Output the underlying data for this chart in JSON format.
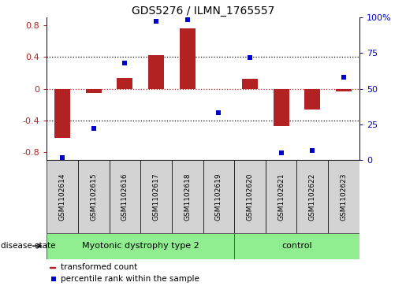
{
  "title": "GDS5276 / ILMN_1765557",
  "samples": [
    "GSM1102614",
    "GSM1102615",
    "GSM1102616",
    "GSM1102617",
    "GSM1102618",
    "GSM1102619",
    "GSM1102620",
    "GSM1102621",
    "GSM1102622",
    "GSM1102623"
  ],
  "red_values": [
    -0.62,
    -0.05,
    0.13,
    0.42,
    0.76,
    0.0,
    0.12,
    -0.47,
    -0.26,
    -0.03
  ],
  "blue_values": [
    2,
    22,
    68,
    97,
    98,
    33,
    72,
    5,
    7,
    58
  ],
  "groups": [
    {
      "label": "Myotonic dystrophy type 2",
      "start": 0,
      "end": 6
    },
    {
      "label": "control",
      "start": 6,
      "end": 10
    }
  ],
  "ylim_left": [
    -0.9,
    0.9
  ],
  "ylim_right": [
    0,
    100
  ],
  "yticks_left": [
    -0.8,
    -0.4,
    0.0,
    0.4,
    0.8
  ],
  "yticks_right": [
    0,
    25,
    50,
    75,
    100
  ],
  "ytick_labels_left": [
    "-0.8",
    "-0.4",
    "0",
    "0.4",
    "0.8"
  ],
  "ytick_labels_right": [
    "0",
    "25",
    "50",
    "75",
    "100%"
  ],
  "red_color": "#B22222",
  "blue_color": "#0000CC",
  "group_color": "#90EE90",
  "sample_box_color": "#D3D3D3",
  "legend_red": "transformed count",
  "legend_blue": "percentile rank within the sample",
  "disease_state_label": "disease state",
  "hline_vals": [
    -0.4,
    0.0,
    0.4
  ],
  "bar_width": 0.5,
  "fig_width": 5.15,
  "fig_height": 3.63,
  "dpi": 100
}
